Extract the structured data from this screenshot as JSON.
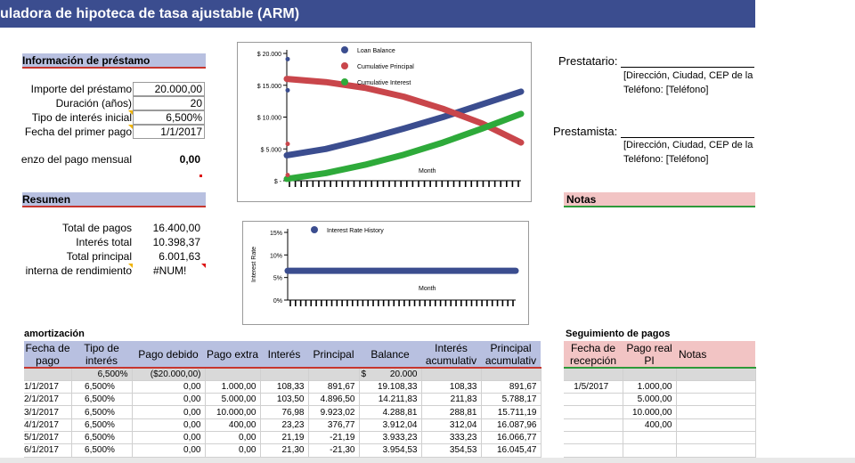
{
  "title": "uladora de hipoteca de tasa ajustable (ARM)",
  "loan_info": {
    "header": "Información de préstamo",
    "rows": [
      {
        "label": "Importe del préstamo",
        "value": "20.000,00"
      },
      {
        "label": "Duración (años)",
        "value": "20"
      },
      {
        "label": "Tipo de interés inicial",
        "value": "6,500%"
      },
      {
        "label": "Fecha del primer pago",
        "value": "1/1/2017"
      }
    ],
    "monthly_label": "enzo del pago mensual",
    "monthly_value": "0,00"
  },
  "summary": {
    "header": "Resumen",
    "rows": [
      {
        "label": "Total de pagos",
        "value": "16.400,00"
      },
      {
        "label": "Interés total",
        "value": "10.398,37"
      },
      {
        "label": "Total principal",
        "value": "6.001,63"
      },
      {
        "label": "interna de rendimiento",
        "value": "#NUM!"
      }
    ]
  },
  "borrower": {
    "label": "Prestatario:",
    "address": "[Dirección, Ciudad, CEP de la",
    "phone": "Teléfono: [Teléfono]"
  },
  "lender": {
    "label": "Prestamista:",
    "address": "[Dirección, Ciudad, CEP de la",
    "phone": "Teléfono: [Teléfono]"
  },
  "notes_header": "Notas",
  "amortization": {
    "header": "amortización",
    "columns": [
      "Fecha de pago",
      "Tipo de interés",
      "Pago debido",
      "Pago extra",
      "Interés",
      "Principal",
      "Balance",
      "Interés acumulativ",
      "Principal acumulativ"
    ],
    "first_row": {
      "rate": "6,500%",
      "due": "($20.000,00)",
      "currency": "$",
      "balance": "20.000"
    },
    "rows": [
      [
        "1/1/2017",
        "6,500%",
        "0,00",
        "1.000,00",
        "108,33",
        "891,67",
        "19.108,33",
        "108,33",
        "891,67"
      ],
      [
        "2/1/2017",
        "6,500%",
        "0,00",
        "5.000,00",
        "103,50",
        "4.896,50",
        "14.211,83",
        "211,83",
        "5.788,17"
      ],
      [
        "3/1/2017",
        "6,500%",
        "0,00",
        "10.000,00",
        "76,98",
        "9.923,02",
        "4.288,81",
        "288,81",
        "15.711,19"
      ],
      [
        "4/1/2017",
        "6,500%",
        "0,00",
        "400,00",
        "23,23",
        "376,77",
        "3.912,04",
        "312,04",
        "16.087,96"
      ],
      [
        "5/1/2017",
        "6,500%",
        "0,00",
        "0,00",
        "21,19",
        "-21,19",
        "3.933,23",
        "333,23",
        "16.066,77"
      ],
      [
        "6/1/2017",
        "6,500%",
        "0,00",
        "0,00",
        "21,30",
        "-21,30",
        "3.954,53",
        "354,53",
        "16.045,47"
      ]
    ]
  },
  "tracking": {
    "header": "Seguimiento de pagos",
    "columns": [
      "Fecha de recepción",
      "Pago real PI",
      "Notas"
    ],
    "rows": [
      [
        "1/5/2017",
        "1.000,00",
        ""
      ],
      [
        "",
        "5.000,00",
        ""
      ],
      [
        "",
        "10.000,00",
        ""
      ],
      [
        "",
        "400,00",
        ""
      ],
      [
        "",
        "",
        ""
      ],
      [
        "",
        "",
        ""
      ]
    ]
  },
  "chart_data": [
    {
      "type": "line",
      "y_ticks": [
        "$ 20.000",
        "$ 15.000",
        "$ 10.000",
        "$ 5.000",
        "$ -"
      ],
      "ylim": [
        0,
        20000
      ],
      "xlabel": "Month",
      "series": [
        {
          "name": "Loan Balance",
          "color": "#3b4d8f",
          "x": [
            0,
            12,
            24,
            36,
            48,
            60,
            72
          ],
          "values": [
            4000,
            5000,
            6500,
            8200,
            10000,
            12000,
            14000
          ]
        },
        {
          "name": "Cumulative Principal",
          "color": "#c9464b",
          "x": [
            0,
            12,
            24,
            36,
            48,
            60,
            72
          ],
          "values": [
            16000,
            15500,
            14600,
            13200,
            11300,
            9000,
            6000
          ]
        },
        {
          "name": "Cumulative Interest",
          "color": "#2eaa3a",
          "x": [
            0,
            12,
            24,
            36,
            48,
            60,
            72
          ],
          "values": [
            300,
            1200,
            2500,
            4100,
            6000,
            8200,
            10500
          ]
        }
      ],
      "markers": [
        {
          "color": "#3b4d8f",
          "value": 19108
        },
        {
          "color": "#3b4d8f",
          "value": 14212
        },
        {
          "color": "#c9464b",
          "value": 5788
        },
        {
          "color": "#c9464b",
          "value": 892
        }
      ]
    },
    {
      "type": "line",
      "y_ticks": [
        "15%",
        "10%",
        "5%",
        "0%"
      ],
      "ylim": [
        0,
        15
      ],
      "ylabel": "Interest Rate",
      "xlabel": "Month",
      "series": [
        {
          "name": "Interest Rate History",
          "color": "#3b4d8f",
          "x": [
            0,
            72
          ],
          "values": [
            6.5,
            6.5
          ]
        }
      ]
    }
  ]
}
